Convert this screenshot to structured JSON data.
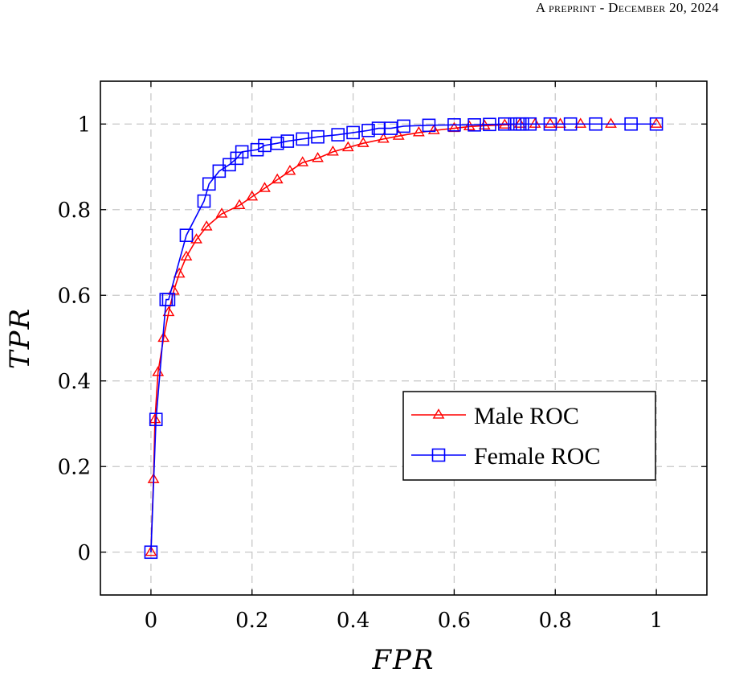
{
  "header": {
    "text": "A preprint - December 20, 2024"
  },
  "chart_data": {
    "type": "line",
    "xlabel": "FPR",
    "ylabel": "TPR",
    "xlim": [
      -0.1,
      1.1
    ],
    "ylim": [
      -0.1,
      1.1
    ],
    "xticks": [
      0,
      0.2,
      0.4,
      0.6,
      0.8,
      1
    ],
    "yticks": [
      0,
      0.2,
      0.4,
      0.6,
      0.8,
      1
    ],
    "grid": true,
    "legend_position": "center-right",
    "series": [
      {
        "name": "Male ROC",
        "color": "#ff0000",
        "marker": "triangle",
        "x": [
          0,
          0.005,
          0.008,
          0.014,
          0.025,
          0.035,
          0.045,
          0.056,
          0.07,
          0.09,
          0.11,
          0.14,
          0.175,
          0.2,
          0.225,
          0.25,
          0.275,
          0.3,
          0.33,
          0.36,
          0.39,
          0.42,
          0.46,
          0.49,
          0.53,
          0.56,
          0.6,
          0.63,
          0.66,
          0.7,
          0.73,
          0.76,
          0.79,
          0.81,
          0.85,
          0.91,
          1
        ],
        "y": [
          0,
          0.17,
          0.31,
          0.42,
          0.5,
          0.56,
          0.61,
          0.65,
          0.69,
          0.73,
          0.76,
          0.79,
          0.81,
          0.83,
          0.85,
          0.87,
          0.89,
          0.91,
          0.92,
          0.935,
          0.945,
          0.955,
          0.965,
          0.972,
          0.98,
          0.985,
          0.99,
          0.994,
          0.996,
          0.998,
          1,
          1,
          1,
          1,
          1,
          1,
          1
        ]
      },
      {
        "name": "Female ROC",
        "color": "#0000ff",
        "marker": "square",
        "x": [
          0,
          0.01,
          0.03,
          0.035,
          0.07,
          0.105,
          0.115,
          0.135,
          0.155,
          0.17,
          0.18,
          0.21,
          0.225,
          0.25,
          0.27,
          0.3,
          0.33,
          0.37,
          0.4,
          0.43,
          0.45,
          0.475,
          0.5,
          0.55,
          0.6,
          0.64,
          0.67,
          0.7,
          0.72,
          0.73,
          0.735,
          0.75,
          0.79,
          0.83,
          0.88,
          0.95,
          1
        ],
        "y": [
          0,
          0.31,
          0.59,
          0.59,
          0.74,
          0.82,
          0.86,
          0.89,
          0.905,
          0.92,
          0.935,
          0.94,
          0.95,
          0.955,
          0.96,
          0.965,
          0.97,
          0.975,
          0.98,
          0.985,
          0.99,
          0.99,
          0.995,
          0.997,
          0.998,
          0.998,
          0.999,
          1,
          1,
          1,
          1,
          1,
          1,
          1,
          1,
          1,
          1
        ]
      }
    ]
  }
}
